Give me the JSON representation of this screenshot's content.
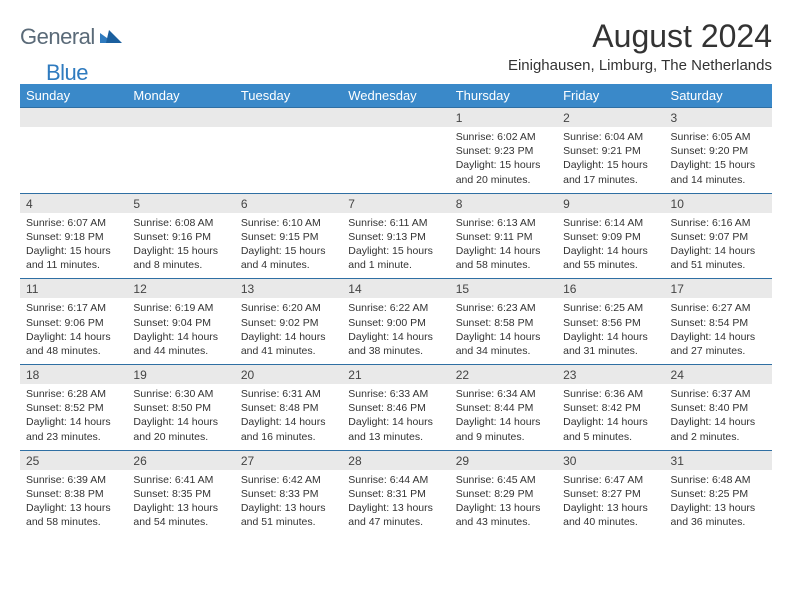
{
  "brand": {
    "part1": "General",
    "part2": "Blue"
  },
  "title": "August 2024",
  "location": "Einighausen, Limburg, The Netherlands",
  "colors": {
    "header_bg": "#3a89c9",
    "header_text": "#ffffff",
    "daynum_bg": "#e9e9e9",
    "row_border": "#2f6fa3",
    "body_text": "#333333",
    "logo_gray": "#5a6a78",
    "logo_blue": "#2f7bbf",
    "page_bg": "#ffffff"
  },
  "weekdays": [
    "Sunday",
    "Monday",
    "Tuesday",
    "Wednesday",
    "Thursday",
    "Friday",
    "Saturday"
  ],
  "weeks": [
    [
      null,
      null,
      null,
      null,
      {
        "d": "1",
        "sr": "6:02 AM",
        "ss": "9:23 PM",
        "dl": "15 hours and 20 minutes."
      },
      {
        "d": "2",
        "sr": "6:04 AM",
        "ss": "9:21 PM",
        "dl": "15 hours and 17 minutes."
      },
      {
        "d": "3",
        "sr": "6:05 AM",
        "ss": "9:20 PM",
        "dl": "15 hours and 14 minutes."
      }
    ],
    [
      {
        "d": "4",
        "sr": "6:07 AM",
        "ss": "9:18 PM",
        "dl": "15 hours and 11 minutes."
      },
      {
        "d": "5",
        "sr": "6:08 AM",
        "ss": "9:16 PM",
        "dl": "15 hours and 8 minutes."
      },
      {
        "d": "6",
        "sr": "6:10 AM",
        "ss": "9:15 PM",
        "dl": "15 hours and 4 minutes."
      },
      {
        "d": "7",
        "sr": "6:11 AM",
        "ss": "9:13 PM",
        "dl": "15 hours and 1 minute."
      },
      {
        "d": "8",
        "sr": "6:13 AM",
        "ss": "9:11 PM",
        "dl": "14 hours and 58 minutes."
      },
      {
        "d": "9",
        "sr": "6:14 AM",
        "ss": "9:09 PM",
        "dl": "14 hours and 55 minutes."
      },
      {
        "d": "10",
        "sr": "6:16 AM",
        "ss": "9:07 PM",
        "dl": "14 hours and 51 minutes."
      }
    ],
    [
      {
        "d": "11",
        "sr": "6:17 AM",
        "ss": "9:06 PM",
        "dl": "14 hours and 48 minutes."
      },
      {
        "d": "12",
        "sr": "6:19 AM",
        "ss": "9:04 PM",
        "dl": "14 hours and 44 minutes."
      },
      {
        "d": "13",
        "sr": "6:20 AM",
        "ss": "9:02 PM",
        "dl": "14 hours and 41 minutes."
      },
      {
        "d": "14",
        "sr": "6:22 AM",
        "ss": "9:00 PM",
        "dl": "14 hours and 38 minutes."
      },
      {
        "d": "15",
        "sr": "6:23 AM",
        "ss": "8:58 PM",
        "dl": "14 hours and 34 minutes."
      },
      {
        "d": "16",
        "sr": "6:25 AM",
        "ss": "8:56 PM",
        "dl": "14 hours and 31 minutes."
      },
      {
        "d": "17",
        "sr": "6:27 AM",
        "ss": "8:54 PM",
        "dl": "14 hours and 27 minutes."
      }
    ],
    [
      {
        "d": "18",
        "sr": "6:28 AM",
        "ss": "8:52 PM",
        "dl": "14 hours and 23 minutes."
      },
      {
        "d": "19",
        "sr": "6:30 AM",
        "ss": "8:50 PM",
        "dl": "14 hours and 20 minutes."
      },
      {
        "d": "20",
        "sr": "6:31 AM",
        "ss": "8:48 PM",
        "dl": "14 hours and 16 minutes."
      },
      {
        "d": "21",
        "sr": "6:33 AM",
        "ss": "8:46 PM",
        "dl": "14 hours and 13 minutes."
      },
      {
        "d": "22",
        "sr": "6:34 AM",
        "ss": "8:44 PM",
        "dl": "14 hours and 9 minutes."
      },
      {
        "d": "23",
        "sr": "6:36 AM",
        "ss": "8:42 PM",
        "dl": "14 hours and 5 minutes."
      },
      {
        "d": "24",
        "sr": "6:37 AM",
        "ss": "8:40 PM",
        "dl": "14 hours and 2 minutes."
      }
    ],
    [
      {
        "d": "25",
        "sr": "6:39 AM",
        "ss": "8:38 PM",
        "dl": "13 hours and 58 minutes."
      },
      {
        "d": "26",
        "sr": "6:41 AM",
        "ss": "8:35 PM",
        "dl": "13 hours and 54 minutes."
      },
      {
        "d": "27",
        "sr": "6:42 AM",
        "ss": "8:33 PM",
        "dl": "13 hours and 51 minutes."
      },
      {
        "d": "28",
        "sr": "6:44 AM",
        "ss": "8:31 PM",
        "dl": "13 hours and 47 minutes."
      },
      {
        "d": "29",
        "sr": "6:45 AM",
        "ss": "8:29 PM",
        "dl": "13 hours and 43 minutes."
      },
      {
        "d": "30",
        "sr": "6:47 AM",
        "ss": "8:27 PM",
        "dl": "13 hours and 40 minutes."
      },
      {
        "d": "31",
        "sr": "6:48 AM",
        "ss": "8:25 PM",
        "dl": "13 hours and 36 minutes."
      }
    ]
  ],
  "labels": {
    "sunrise": "Sunrise: ",
    "sunset": "Sunset: ",
    "daylight": "Daylight: "
  }
}
